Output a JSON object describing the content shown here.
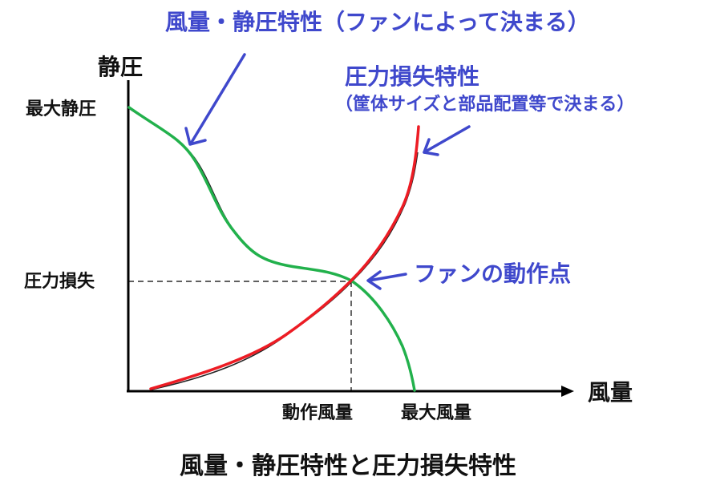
{
  "title": "風量・静圧特性と圧力損失特性",
  "axes": {
    "y_label": "静圧",
    "x_label": "風量",
    "y_ticks": [
      "最大静圧",
      "圧力損失"
    ],
    "x_ticks": [
      "動作風量",
      "最大風量"
    ]
  },
  "annotations": {
    "fan_curve": "風量・静圧特性（ファンによって決まる）",
    "loss_curve_title": "圧力損失特性",
    "loss_curve_note": "（筐体サイズと部品配置等で決まる）",
    "operating_point": "ファンの動作点"
  },
  "colors": {
    "fan_curve": "#22b14c",
    "loss_curve": "#ed1c24",
    "annotation": "#3f48cc",
    "axis": "#000000"
  }
}
